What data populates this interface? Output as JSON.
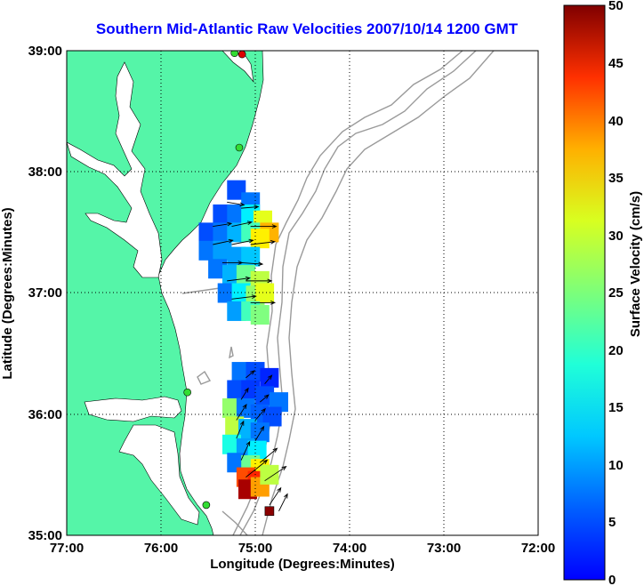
{
  "title": "Southern Mid-Atlantic Raw Velocities 2007/10/14 1200 GMT",
  "x_axis": {
    "label": "Longitude (Degrees:Minutes)",
    "ticks": [
      "77:00",
      "76:00",
      "75:00",
      "74:00",
      "73:00",
      "72:00"
    ]
  },
  "y_axis": {
    "label": "Latitude (Degrees:Minutes)",
    "ticks": [
      "39:00",
      "38:00",
      "37:00",
      "36:00",
      "35:00"
    ]
  },
  "colorbar": {
    "label": "Surface Velocity (cm/s)",
    "ticks": [
      "50",
      "45",
      "40",
      "35",
      "30",
      "25",
      "20",
      "15",
      "10",
      "5",
      "0"
    ],
    "range": [
      0,
      50
    ],
    "colormap": "jet"
  },
  "colors": {
    "land": "#55f5a8",
    "title": "#0000ff",
    "bathymetry": "#9a9a9a",
    "station_green": "#33dd33",
    "station_red": "#dd0000"
  },
  "chart_data": {
    "type": "heatmap",
    "title": "Southern Mid-Atlantic Raw Velocities 2007/10/14 1200 GMT",
    "xlabel": "Longitude (Degrees:Minutes)",
    "ylabel": "Latitude (Degrees:Minutes)",
    "xlim": [
      -77,
      -72
    ],
    "ylim": [
      35,
      39
    ],
    "grid": true,
    "colorbar_label": "Surface Velocity (cm/s)",
    "colorbar_range": [
      0,
      50
    ],
    "regions": [
      {
        "name_hidden": "north",
        "cells": [
          {
            "lon": -75.2,
            "lat": 37.85,
            "v": 10
          },
          {
            "lon": -75.05,
            "lat": 37.75,
            "v": 12
          },
          {
            "lon": -75.35,
            "lat": 37.65,
            "v": 10
          },
          {
            "lon": -75.2,
            "lat": 37.65,
            "v": 12
          },
          {
            "lon": -75.05,
            "lat": 37.65,
            "v": 18
          },
          {
            "lon": -74.92,
            "lat": 37.6,
            "v": 30
          },
          {
            "lon": -74.85,
            "lat": 37.5,
            "v": 35
          },
          {
            "lon": -75.5,
            "lat": 37.5,
            "v": 10
          },
          {
            "lon": -75.35,
            "lat": 37.5,
            "v": 12
          },
          {
            "lon": -75.2,
            "lat": 37.5,
            "v": 15
          },
          {
            "lon": -75.05,
            "lat": 37.5,
            "v": 22
          },
          {
            "lon": -74.95,
            "lat": 37.45,
            "v": 32
          },
          {
            "lon": -75.5,
            "lat": 37.35,
            "v": 12
          },
          {
            "lon": -75.35,
            "lat": 37.35,
            "v": 14
          },
          {
            "lon": -75.2,
            "lat": 37.3,
            "v": 14
          },
          {
            "lon": -75.05,
            "lat": 37.3,
            "v": 16
          },
          {
            "lon": -75.4,
            "lat": 37.2,
            "v": 12
          },
          {
            "lon": -75.25,
            "lat": 37.15,
            "v": 15
          },
          {
            "lon": -75.1,
            "lat": 37.15,
            "v": 24
          },
          {
            "lon": -74.95,
            "lat": 37.1,
            "v": 28
          },
          {
            "lon": -75.3,
            "lat": 37.0,
            "v": 12
          },
          {
            "lon": -75.15,
            "lat": 37.0,
            "v": 18
          },
          {
            "lon": -75.0,
            "lat": 36.98,
            "v": 26
          },
          {
            "lon": -74.9,
            "lat": 37.0,
            "v": 30
          },
          {
            "lon": -75.2,
            "lat": 36.85,
            "v": 14
          },
          {
            "lon": -75.05,
            "lat": 36.85,
            "v": 22
          },
          {
            "lon": -74.95,
            "lat": 36.82,
            "v": 25
          }
        ]
      },
      {
        "name_hidden": "south",
        "cells": [
          {
            "lon": -75.15,
            "lat": 36.35,
            "v": 12
          },
          {
            "lon": -75.0,
            "lat": 36.35,
            "v": 10
          },
          {
            "lon": -74.85,
            "lat": 36.3,
            "v": 8
          },
          {
            "lon": -75.2,
            "lat": 36.2,
            "v": 10
          },
          {
            "lon": -75.05,
            "lat": 36.2,
            "v": 9
          },
          {
            "lon": -74.9,
            "lat": 36.15,
            "v": 10
          },
          {
            "lon": -74.75,
            "lat": 36.1,
            "v": 12
          },
          {
            "lon": -75.25,
            "lat": 36.05,
            "v": 26
          },
          {
            "lon": -75.1,
            "lat": 36.05,
            "v": 12
          },
          {
            "lon": -74.95,
            "lat": 36.0,
            "v": 11
          },
          {
            "lon": -74.82,
            "lat": 35.98,
            "v": 10
          },
          {
            "lon": -75.22,
            "lat": 35.9,
            "v": 28
          },
          {
            "lon": -75.08,
            "lat": 35.88,
            "v": 15
          },
          {
            "lon": -74.95,
            "lat": 35.85,
            "v": 12
          },
          {
            "lon": -75.25,
            "lat": 35.75,
            "v": 20
          },
          {
            "lon": -75.1,
            "lat": 35.72,
            "v": 14
          },
          {
            "lon": -74.98,
            "lat": 35.7,
            "v": 18
          },
          {
            "lon": -75.2,
            "lat": 35.6,
            "v": 12
          },
          {
            "lon": -75.05,
            "lat": 35.58,
            "v": 24
          },
          {
            "lon": -74.95,
            "lat": 35.55,
            "v": 32
          },
          {
            "lon": -75.1,
            "lat": 35.48,
            "v": 40
          },
          {
            "lon": -74.98,
            "lat": 35.45,
            "v": 42
          },
          {
            "lon": -75.08,
            "lat": 35.38,
            "v": 48
          },
          {
            "lon": -74.95,
            "lat": 35.4,
            "v": 36
          },
          {
            "lon": -74.85,
            "lat": 35.5,
            "v": 28
          }
        ]
      }
    ],
    "vectors": [
      {
        "lon": -75.3,
        "lat": 37.75,
        "u": 0.12,
        "v": -0.02
      },
      {
        "lon": -75.15,
        "lat": 37.7,
        "u": 0.12,
        "v": 0.01
      },
      {
        "lon": -75.45,
        "lat": 37.55,
        "u": 0.13,
        "v": 0.02
      },
      {
        "lon": -75.25,
        "lat": 37.55,
        "u": 0.14,
        "v": 0.03
      },
      {
        "lon": -75.05,
        "lat": 37.55,
        "u": 0.18,
        "v": 0.0
      },
      {
        "lon": -75.45,
        "lat": 37.4,
        "u": 0.14,
        "v": 0.03
      },
      {
        "lon": -75.25,
        "lat": 37.4,
        "u": 0.15,
        "v": 0.03
      },
      {
        "lon": -75.05,
        "lat": 37.4,
        "u": 0.17,
        "v": 0.02
      },
      {
        "lon": -75.35,
        "lat": 37.25,
        "u": 0.14,
        "v": 0.0
      },
      {
        "lon": -75.15,
        "lat": 37.25,
        "u": 0.15,
        "v": -0.01
      },
      {
        "lon": -75.3,
        "lat": 37.1,
        "u": 0.16,
        "v": 0.02
      },
      {
        "lon": -75.1,
        "lat": 37.1,
        "u": 0.18,
        "v": 0.0
      },
      {
        "lon": -75.25,
        "lat": 36.95,
        "u": 0.17,
        "v": 0.02
      },
      {
        "lon": -75.05,
        "lat": 36.92,
        "u": 0.17,
        "v": 0.0
      },
      {
        "lon": -75.1,
        "lat": 36.3,
        "u": 0.06,
        "v": 0.05
      },
      {
        "lon": -74.9,
        "lat": 36.25,
        "u": 0.05,
        "v": 0.06
      },
      {
        "lon": -75.15,
        "lat": 36.12,
        "u": 0.05,
        "v": 0.08
      },
      {
        "lon": -74.95,
        "lat": 36.1,
        "u": 0.06,
        "v": 0.05
      },
      {
        "lon": -75.2,
        "lat": 35.95,
        "u": 0.07,
        "v": 0.11
      },
      {
        "lon": -75.0,
        "lat": 35.95,
        "u": 0.07,
        "v": 0.08
      },
      {
        "lon": -75.2,
        "lat": 35.8,
        "u": 0.05,
        "v": 0.12
      },
      {
        "lon": -75.0,
        "lat": 35.78,
        "u": 0.06,
        "v": 0.1
      },
      {
        "lon": -75.15,
        "lat": 35.62,
        "u": 0.06,
        "v": 0.13
      },
      {
        "lon": -74.95,
        "lat": 35.6,
        "u": 0.12,
        "v": 0.1
      },
      {
        "lon": -75.1,
        "lat": 35.48,
        "u": 0.15,
        "v": 0.12
      },
      {
        "lon": -74.9,
        "lat": 35.45,
        "u": 0.15,
        "v": 0.1
      },
      {
        "lon": -74.85,
        "lat": 35.25,
        "u": 0.08,
        "v": 0.12
      },
      {
        "lon": -74.75,
        "lat": 35.2,
        "u": 0.06,
        "v": 0.12
      }
    ],
    "stations": [
      {
        "lon": -75.14,
        "lat": 38.97,
        "color": "red"
      },
      {
        "lon": -75.22,
        "lat": 38.98,
        "color": "green"
      },
      {
        "lon": -75.17,
        "lat": 38.2,
        "color": "green"
      },
      {
        "lon": -75.72,
        "lat": 36.18,
        "color": "green"
      },
      {
        "lon": -75.52,
        "lat": 35.25,
        "color": "green"
      },
      {
        "lon": -74.85,
        "lat": 35.2,
        "color": "darkred"
      }
    ]
  }
}
